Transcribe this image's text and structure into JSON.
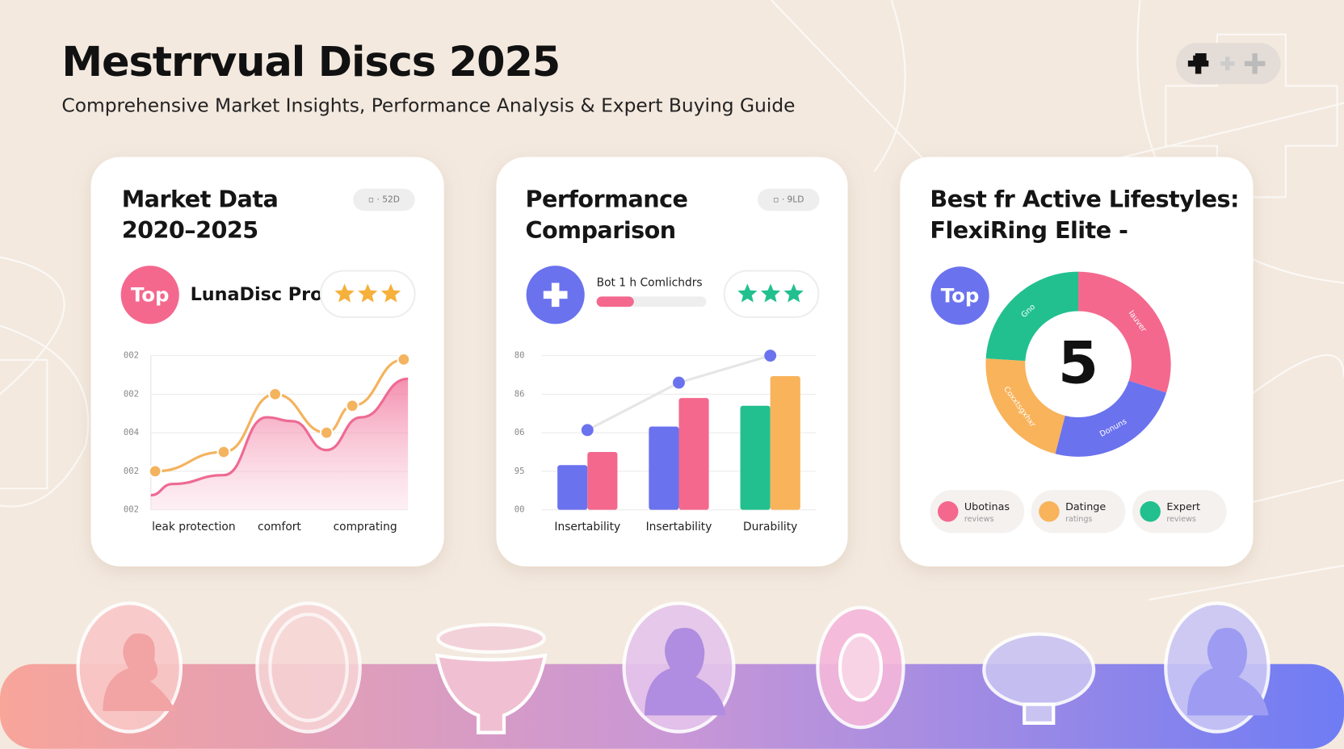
{
  "header": {
    "title": "Mestrrvual Discs 2025",
    "subtitle": "Comprehensive Market Insights, Performance Analysis & Expert Buying Guide"
  },
  "cards": [
    {
      "title_lines": [
        "Market Data",
        "2020–2025"
      ],
      "pill": "▫ · 52D",
      "badge": "Top",
      "product": "LunaDisc Pro"
    },
    {
      "title_lines": [
        "Performance",
        "Comparison"
      ],
      "pill": "▫ · 9LD",
      "caption": "Bot 1 h Comlichdrs",
      "progress": 34
    },
    {
      "title_lines": [
        "Best fr Active Lifestyles:",
        "FlexiRing Elite -"
      ],
      "badge": "Top",
      "center": "5",
      "chips": [
        {
          "label": "Ubotinas",
          "sub": "reviews"
        },
        {
          "label": "Datinge",
          "sub": "ratings"
        },
        {
          "label": "Expert",
          "sub": "reviews"
        }
      ]
    }
  ],
  "chart_data": [
    {
      "type": "line",
      "xlim": [
        0,
        6
      ],
      "ylim": [
        0,
        4
      ],
      "xticks": [
        {
          "value": 1,
          "label": "leak protection"
        },
        {
          "value": 3,
          "label": "comfort"
        },
        {
          "value": 5,
          "label": "comprating"
        }
      ],
      "yticks": [
        {
          "value": 0,
          "label": "002"
        },
        {
          "value": 1,
          "label": "002"
        },
        {
          "value": 2,
          "label": "004"
        },
        {
          "value": 3,
          "label": "002"
        },
        {
          "value": 4,
          "label": "002"
        }
      ],
      "grid": true,
      "series": [
        {
          "color": "#ee6a93",
          "area": true,
          "x": [
            0,
            0.5,
            1.7,
            2.7,
            3.3,
            4.1,
            4.9,
            6
          ],
          "values": [
            0.38,
            0.67,
            0.9,
            2.4,
            2.3,
            1.55,
            2.4,
            3.4
          ]
        },
        {
          "color": "#f4b35e",
          "markers": true,
          "x": [
            0.1,
            1.7,
            2.9,
            4.1,
            4.7,
            5.9
          ],
          "values": [
            1.0,
            1.5,
            3.0,
            2.0,
            2.7,
            3.9
          ]
        }
      ]
    },
    {
      "type": "bar",
      "categories": [
        "Insertability",
        "Insertability",
        "Durability"
      ],
      "ylim": [
        0,
        4
      ],
      "yticks": [
        {
          "value": 0,
          "label": "00"
        },
        {
          "value": 1,
          "label": "95"
        },
        {
          "value": 2,
          "label": "06"
        },
        {
          "value": 3,
          "label": "86"
        },
        {
          "value": 4,
          "label": "80"
        }
      ],
      "grid": true,
      "series": [
        {
          "colors": [
            "#6b72ee",
            "#6b72ee",
            "#22c08e"
          ],
          "values": [
            1.16,
            2.16,
            2.7
          ]
        },
        {
          "colors": [
            "#f4688e",
            "#f4688e",
            "#f8b35b"
          ],
          "values": [
            1.5,
            2.9,
            3.47
          ]
        },
        {
          "type": "line",
          "color": "#6b72ee",
          "values": [
            2.07,
            3.3,
            4.0
          ]
        }
      ]
    },
    {
      "type": "pie",
      "categories": [
        "Iauver",
        "Donuns",
        "Coxxtsgxhxr",
        "Gno"
      ],
      "values": [
        30,
        24,
        22,
        24
      ],
      "colors": [
        "#f4688e",
        "#6b72ee",
        "#f8b35b",
        "#22c08e"
      ]
    }
  ]
}
